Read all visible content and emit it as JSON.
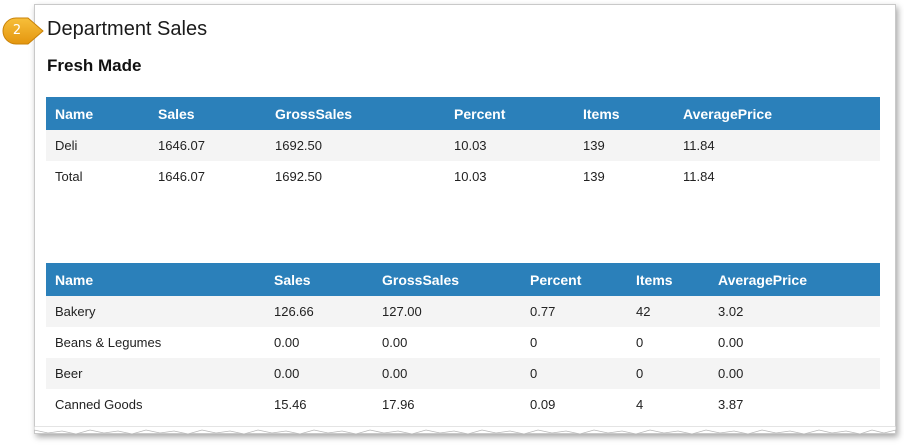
{
  "step_badge": {
    "number": "2",
    "color": "#f0a81c"
  },
  "page": {
    "title": "Department Sales",
    "section_title": "Fresh Made"
  },
  "colors": {
    "header_bg": "#2b80ba",
    "header_text": "#ffffff",
    "row_stripe": "#f4f4f4"
  },
  "table1": {
    "headers": [
      "Name",
      "Sales",
      "GrossSales",
      "Percent",
      "Items",
      "AveragePrice"
    ],
    "rows": [
      [
        "Deli",
        "1646.07",
        "1692.50",
        "10.03",
        "139",
        "11.84"
      ],
      [
        "Total",
        "1646.07",
        "1692.50",
        "10.03",
        "139",
        "11.84"
      ]
    ]
  },
  "table2": {
    "headers": [
      "Name",
      "Sales",
      "GrossSales",
      "Percent",
      "Items",
      "AveragePrice"
    ],
    "rows": [
      [
        "Bakery",
        "126.66",
        "127.00",
        "0.77",
        "42",
        "3.02"
      ],
      [
        "Beans & Legumes",
        "0.00",
        "0.00",
        "0",
        "0",
        "0.00"
      ],
      [
        "Beer",
        "0.00",
        "0.00",
        "0",
        "0",
        "0.00"
      ],
      [
        "Canned Goods",
        "15.46",
        "17.96",
        "0.09",
        "4",
        "3.87"
      ]
    ]
  }
}
